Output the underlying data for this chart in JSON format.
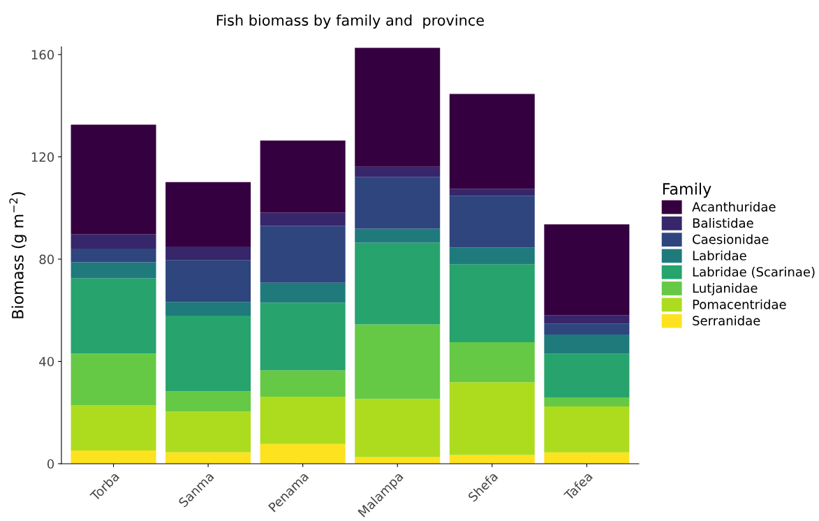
{
  "chart_data": {
    "type": "bar",
    "title": "Fish biomass by family and  province",
    "ylabel": "Biomass (g m$^{−2}$)",
    "legend_title": "Family",
    "categories": [
      "Torba",
      "Sanma",
      "Penama",
      "Malampa",
      "Shefa",
      "Tafea"
    ],
    "stacked": true,
    "ylim": [
      0,
      163
    ],
    "yticks": [
      0,
      40,
      80,
      120,
      160
    ],
    "grid": false,
    "legend": "right",
    "series": [
      {
        "name": "Serranidae",
        "color": "#fde21f",
        "values": [
          5.2,
          4.5,
          7.7,
          2.6,
          3.4,
          4.4
        ]
      },
      {
        "name": "Pomacentridae",
        "color": "#addc1f",
        "values": [
          17.7,
          15.8,
          18.5,
          22.7,
          28.5,
          18.0
        ]
      },
      {
        "name": "Lutjanidae",
        "color": "#66c945",
        "values": [
          20.2,
          8.0,
          10.3,
          29.2,
          15.6,
          3.5
        ]
      },
      {
        "name": "Labridae (Scarinae)",
        "color": "#27a36d",
        "values": [
          29.4,
          29.6,
          26.5,
          31.9,
          30.5,
          17.2
        ]
      },
      {
        "name": "Labridae",
        "color": "#1f7a7c",
        "values": [
          6.3,
          5.4,
          7.8,
          5.5,
          6.6,
          7.4
        ]
      },
      {
        "name": "Caesionidae",
        "color": "#2e457e",
        "values": [
          5.3,
          16.4,
          22.2,
          20.3,
          20.2,
          4.3
        ]
      },
      {
        "name": "Balistidae",
        "color": "#37266a",
        "values": [
          5.7,
          5.2,
          5.2,
          3.9,
          2.7,
          3.3
        ]
      },
      {
        "name": "Acanthuridae",
        "color": "#35003f",
        "values": [
          42.8,
          25.2,
          28.2,
          46.5,
          37.1,
          35.5
        ]
      }
    ]
  }
}
